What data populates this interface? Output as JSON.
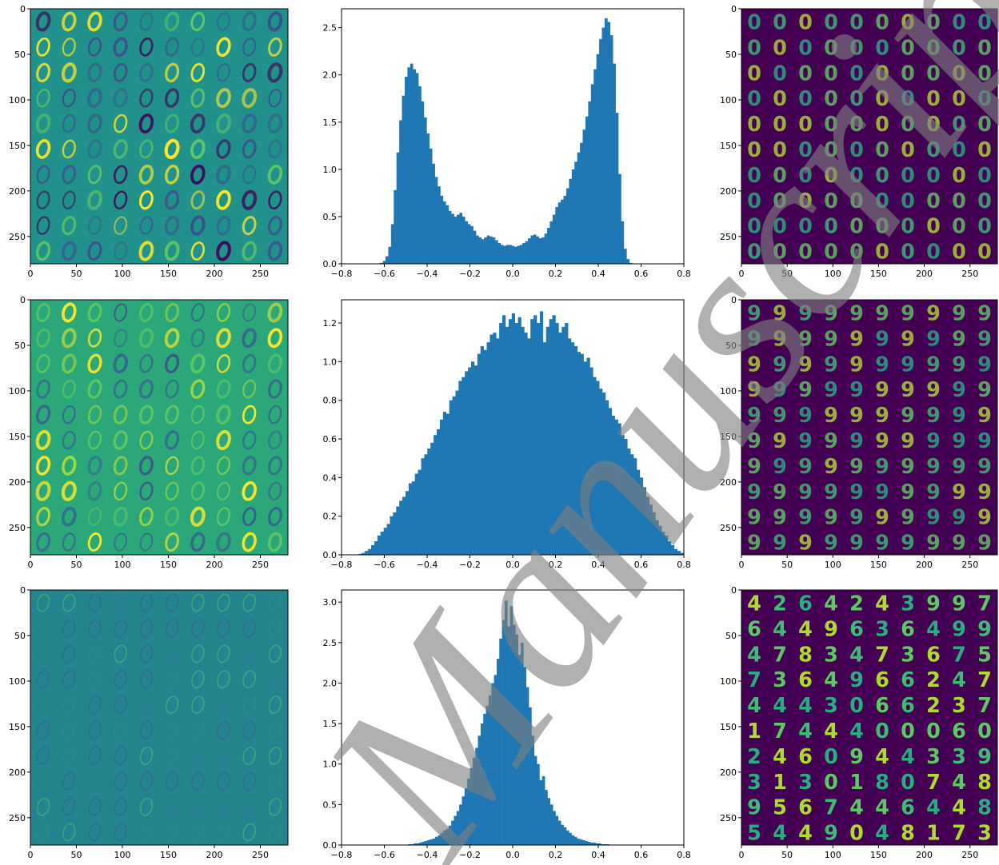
{
  "figure": {
    "layout": "3 rows x 3 columns",
    "colors": {
      "bar": "#1f77b4",
      "viridis_low": "#440154",
      "viridis_mid": "#21918c",
      "viridis_high": "#fde725",
      "watermark": "rgba(128,128,128,0.62)"
    },
    "watermark_text": "Manuscript"
  },
  "chart_data": [
    {
      "type": "heatmap",
      "panel": "row1-left",
      "content": "10x10 grid of 28x28 weight images (digit 0 patterns)",
      "cmap": "viridis",
      "x_ticks": [
        "0",
        "50",
        "100",
        "150",
        "200",
        "250"
      ],
      "y_ticks": [
        "0",
        "50",
        "100",
        "150",
        "200",
        "250"
      ],
      "xlim": [
        0,
        280
      ],
      "ylim": [
        280,
        0
      ]
    },
    {
      "type": "bar",
      "panel": "row1-middle",
      "title": "",
      "xlabel": "",
      "ylabel": "",
      "xlim": [
        -0.8,
        0.8
      ],
      "ylim": [
        0,
        2.7
      ],
      "x_ticks": [
        "-0.8",
        "-0.6",
        "-0.4",
        "-0.2",
        "0.0",
        "0.2",
        "0.4",
        "0.6",
        "0.8"
      ],
      "y_ticks": [
        "0.0",
        "0.5",
        "1.0",
        "1.5",
        "2.0",
        "2.5"
      ],
      "bin_start": -0.62,
      "bin_width": 0.0128,
      "values": [
        0.01,
        0.03,
        0.08,
        0.18,
        0.42,
        0.78,
        1.18,
        1.52,
        1.78,
        1.98,
        2.08,
        2.12,
        2.06,
        2.02,
        1.88,
        1.72,
        1.55,
        1.38,
        1.22,
        1.06,
        0.92,
        0.82,
        0.72,
        0.66,
        0.62,
        0.56,
        0.53,
        0.5,
        0.52,
        0.54,
        0.5,
        0.45,
        0.42,
        0.4,
        0.35,
        0.3,
        0.28,
        0.26,
        0.28,
        0.3,
        0.29,
        0.28,
        0.25,
        0.22,
        0.2,
        0.19,
        0.2,
        0.2,
        0.19,
        0.18,
        0.19,
        0.2,
        0.22,
        0.24,
        0.27,
        0.3,
        0.31,
        0.29,
        0.27,
        0.28,
        0.32,
        0.38,
        0.45,
        0.52,
        0.6,
        0.65,
        0.68,
        0.72,
        0.8,
        0.9,
        1.0,
        1.08,
        1.18,
        1.28,
        1.42,
        1.56,
        1.72,
        1.9,
        2.06,
        2.22,
        2.38,
        2.5,
        2.6,
        2.56,
        2.42,
        2.12,
        1.6,
        0.95,
        0.45,
        0.16,
        0.05,
        0.01
      ]
    },
    {
      "type": "heatmap",
      "panel": "row1-right",
      "content": "10x10 grid of 28x28 generated digit images",
      "cmap": "viridis",
      "x_ticks": [
        "0",
        "50",
        "100",
        "150",
        "200",
        "250"
      ],
      "y_ticks": [
        "0",
        "50",
        "100",
        "150",
        "200",
        "250"
      ],
      "xlim": [
        0,
        280
      ],
      "ylim": [
        280,
        0
      ]
    },
    {
      "type": "heatmap",
      "panel": "row2-left",
      "content": "10x10 grid of 28x28 weight images",
      "cmap": "viridis",
      "x_ticks": [
        "0",
        "50",
        "100",
        "150",
        "200",
        "250"
      ],
      "y_ticks": [
        "0",
        "50",
        "100",
        "150",
        "200",
        "250"
      ],
      "xlim": [
        0,
        280
      ],
      "ylim": [
        280,
        0
      ]
    },
    {
      "type": "bar",
      "panel": "row2-middle",
      "title": "",
      "xlabel": "",
      "ylabel": "",
      "xlim": [
        -0.8,
        0.8
      ],
      "ylim": [
        0,
        1.32
      ],
      "x_ticks": [
        "-0.8",
        "-0.6",
        "-0.4",
        "-0.2",
        "0.0",
        "0.2",
        "0.4",
        "0.6",
        "0.8"
      ],
      "y_ticks": [
        "0.0",
        "0.2",
        "0.4",
        "0.6",
        "0.8",
        "1.0",
        "1.2"
      ],
      "bin_start": -0.72,
      "bin_width": 0.0146,
      "values": [
        0.005,
        0.01,
        0.02,
        0.03,
        0.05,
        0.07,
        0.1,
        0.12,
        0.14,
        0.16,
        0.2,
        0.22,
        0.25,
        0.28,
        0.3,
        0.33,
        0.37,
        0.38,
        0.42,
        0.44,
        0.5,
        0.52,
        0.55,
        0.58,
        0.62,
        0.65,
        0.7,
        0.74,
        0.73,
        0.8,
        0.82,
        0.85,
        0.9,
        0.92,
        0.95,
        0.97,
        1.0,
        0.98,
        1.04,
        1.08,
        1.06,
        1.1,
        1.14,
        1.15,
        1.12,
        1.2,
        1.24,
        1.18,
        1.22,
        1.25,
        1.2,
        1.23,
        1.18,
        1.15,
        1.12,
        1.22,
        1.24,
        1.2,
        1.26,
        1.1,
        1.18,
        1.22,
        1.24,
        1.2,
        1.15,
        1.18,
        1.2,
        1.12,
        1.1,
        1.08,
        1.05,
        1.04,
        1.0,
        1.02,
        0.97,
        0.92,
        0.9,
        0.86,
        0.84,
        0.8,
        0.76,
        0.72,
        0.7,
        0.68,
        0.62,
        0.6,
        0.55,
        0.52,
        0.5,
        0.44,
        0.4,
        0.35,
        0.3,
        0.26,
        0.22,
        0.18,
        0.15,
        0.12,
        0.1,
        0.07,
        0.05,
        0.03,
        0.02,
        0.01
      ]
    },
    {
      "type": "heatmap",
      "panel": "row2-right",
      "content": "10x10 grid of 28x28 generated digit images",
      "cmap": "viridis",
      "x_ticks": [
        "0",
        "50",
        "100",
        "150",
        "200",
        "250"
      ],
      "y_ticks": [
        "0",
        "50",
        "100",
        "150",
        "200",
        "250"
      ],
      "xlim": [
        0,
        280
      ],
      "ylim": [
        280,
        0
      ]
    },
    {
      "type": "heatmap",
      "panel": "row3-left",
      "content": "10x10 grid of 28x28 weight images",
      "cmap": "viridis",
      "x_ticks": [
        "0",
        "50",
        "100",
        "150",
        "200",
        "250"
      ],
      "y_ticks": [
        "0",
        "50",
        "100",
        "150",
        "200",
        "250"
      ],
      "xlim": [
        0,
        280
      ],
      "ylim": [
        280,
        0
      ]
    },
    {
      "type": "bar",
      "panel": "row3-middle",
      "title": "",
      "xlabel": "",
      "ylabel": "",
      "xlim": [
        -0.8,
        0.8
      ],
      "ylim": [
        0,
        3.15
      ],
      "x_ticks": [
        "-0.8",
        "-0.6",
        "-0.4",
        "-0.2",
        "0.0",
        "0.2",
        "0.4",
        "0.6",
        "0.8"
      ],
      "y_ticks": [
        "0.0",
        "0.5",
        "1.0",
        "1.5",
        "2.0",
        "2.5",
        "3.0"
      ],
      "bin_start": -0.5,
      "bin_width": 0.0125,
      "values": [
        0.005,
        0.01,
        0.01,
        0.02,
        0.02,
        0.03,
        0.04,
        0.05,
        0.06,
        0.07,
        0.08,
        0.1,
        0.12,
        0.15,
        0.18,
        0.2,
        0.24,
        0.3,
        0.36,
        0.42,
        0.5,
        0.6,
        0.7,
        0.82,
        0.95,
        1.08,
        1.2,
        1.35,
        1.5,
        1.62,
        1.72,
        1.85,
        2.0,
        2.1,
        2.3,
        2.55,
        2.78,
        3.02,
        2.7,
        2.95,
        2.72,
        2.6,
        2.35,
        2.5,
        2.2,
        1.95,
        1.7,
        1.35,
        1.1,
        1.0,
        0.8,
        0.85,
        0.68,
        0.58,
        0.5,
        0.42,
        0.36,
        0.3,
        0.25,
        0.22,
        0.18,
        0.15,
        0.12,
        0.1,
        0.08,
        0.07,
        0.06,
        0.05,
        0.04,
        0.03,
        0.03,
        0.02,
        0.02,
        0.01,
        0.01,
        0.01,
        0.005,
        0.005,
        0.005,
        0.005,
        0.003,
        0.003,
        0.002,
        0.002,
        0.001,
        0.001,
        0.001,
        0.001,
        0.001,
        0.001,
        0.001,
        0.001,
        0.001,
        0.001,
        0.001,
        0.001
      ]
    },
    {
      "type": "heatmap",
      "panel": "row3-right",
      "content": "10x10 grid of 28x28 generated digit images",
      "cmap": "viridis",
      "x_ticks": [
        "0",
        "50",
        "100",
        "150",
        "200",
        "250"
      ],
      "y_ticks": [
        "0",
        "50",
        "100",
        "150",
        "200",
        "250"
      ],
      "xlim": [
        0,
        280
      ],
      "ylim": [
        280,
        0
      ]
    }
  ]
}
